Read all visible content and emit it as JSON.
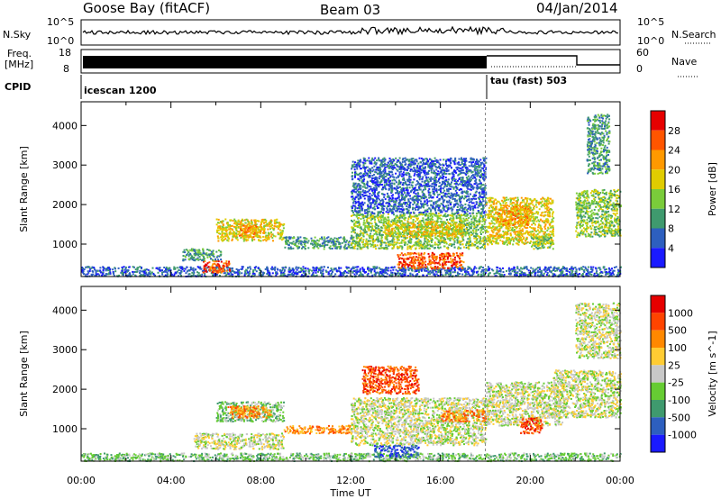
{
  "header": {
    "station": "Goose Bay (fitACF)",
    "beam": "Beam 03",
    "date": "04/Jan/2014"
  },
  "sky_panel": {
    "left_label": "N.Sky",
    "right_label": "N.Search",
    "left_ticks": [
      "10^5",
      "10^0"
    ],
    "right_ticks": [
      "10^5",
      "10^0"
    ]
  },
  "freq_panel": {
    "left_label_line1": "Freq.",
    "left_label_line2": "[MHz]",
    "right_label": "Nave",
    "left_ticks": [
      "18",
      "8"
    ],
    "right_ticks": [
      "60",
      "0"
    ]
  },
  "cpid_panel": {
    "label": "CPID",
    "modes": [
      {
        "name": "icescan 1200",
        "start_hour": 0
      },
      {
        "name": "tau (fast) 503",
        "start_hour": 18
      }
    ]
  },
  "x_axis": {
    "label": "Time UT",
    "tick_labels": [
      "00:00",
      "04:00",
      "08:00",
      "12:00",
      "16:00",
      "20:00",
      "00:00"
    ],
    "range_hours": [
      0,
      24
    ]
  },
  "chart_data": [
    {
      "type": "heatmap",
      "name": "power",
      "ylabel": "Slant Range [km]",
      "y_ticks": [
        "1000",
        "2000",
        "3000",
        "4000"
      ],
      "ylim": [
        180,
        4600
      ],
      "xlim": [
        0,
        24
      ],
      "colorbar": {
        "label": "Power [dB]",
        "tick_labels": [
          "4",
          "8",
          "12",
          "16",
          "20",
          "24",
          "28"
        ],
        "colors": [
          "#1a1aff",
          "#2d5fbf",
          "#3f9a6e",
          "#7acc3a",
          "#e0cc00",
          "#ff9900",
          "#ff5500",
          "#e60000"
        ]
      },
      "regions": [
        {
          "t0": 0.0,
          "t1": 24.0,
          "r0": 200,
          "r1": 450,
          "level": 1
        },
        {
          "t0": 5.4,
          "t1": 6.6,
          "r0": 300,
          "r1": 600,
          "level": 6
        },
        {
          "t0": 4.5,
          "t1": 6.2,
          "r0": 600,
          "r1": 900,
          "level": 2
        },
        {
          "t0": 6.0,
          "t1": 9.0,
          "r0": 1100,
          "r1": 1650,
          "level": 4
        },
        {
          "t0": 7.0,
          "t1": 8.0,
          "r0": 1200,
          "r1": 1500,
          "level": 5
        },
        {
          "t0": 9.0,
          "t1": 12.0,
          "r0": 900,
          "r1": 1200,
          "level": 2
        },
        {
          "t0": 12.0,
          "t1": 18.0,
          "r0": 900,
          "r1": 1800,
          "level": 3
        },
        {
          "t0": 13.5,
          "t1": 17.0,
          "r0": 1200,
          "r1": 1600,
          "level": 4
        },
        {
          "t0": 14.0,
          "t1": 17.0,
          "r0": 400,
          "r1": 800,
          "level": 6
        },
        {
          "t0": 12.0,
          "t1": 18.0,
          "r0": 1800,
          "r1": 3200,
          "level": 1
        },
        {
          "t0": 18.0,
          "t1": 21.0,
          "r0": 1000,
          "r1": 2200,
          "level": 4
        },
        {
          "t0": 18.5,
          "t1": 20.0,
          "r0": 1500,
          "r1": 2000,
          "level": 5
        },
        {
          "t0": 20.0,
          "t1": 21.0,
          "r0": 900,
          "r1": 1200,
          "level": 3
        },
        {
          "t0": 22.0,
          "t1": 24.0,
          "r0": 1200,
          "r1": 2400,
          "level": 3
        },
        {
          "t0": 22.5,
          "t1": 23.5,
          "r0": 2800,
          "r1": 4300,
          "level": 2
        }
      ]
    },
    {
      "type": "heatmap",
      "name": "velocity",
      "ylabel": "Slant Range [km]",
      "y_ticks": [
        "1000",
        "2000",
        "3000",
        "4000"
      ],
      "ylim": [
        180,
        4600
      ],
      "xlim": [
        0,
        24
      ],
      "colorbar": {
        "label": "Velocity [m s^-1]",
        "tick_labels": [
          "1000",
          "500",
          "100",
          "25",
          "-25",
          "-100",
          "-500",
          "-1000"
        ],
        "colors": [
          "#1a1aff",
          "#2d5fbf",
          "#3f9a6e",
          "#66cc33",
          "#c8c8c8",
          "#ffcc33",
          "#ff8800",
          "#ff4400",
          "#e60000"
        ]
      },
      "regions": [
        {
          "t0": 0.0,
          "t1": 24.0,
          "r0": 200,
          "r1": 400,
          "level": 3
        },
        {
          "t0": 5.0,
          "t1": 9.0,
          "r0": 500,
          "r1": 900,
          "level": 4
        },
        {
          "t0": 6.0,
          "t1": 9.0,
          "r0": 1200,
          "r1": 1700,
          "level": 3
        },
        {
          "t0": 6.5,
          "t1": 8.5,
          "r0": 1300,
          "r1": 1600,
          "level": 6
        },
        {
          "t0": 9.0,
          "t1": 12.0,
          "r0": 900,
          "r1": 1100,
          "level": 6
        },
        {
          "t0": 12.0,
          "t1": 18.0,
          "r0": 600,
          "r1": 1800,
          "level": 4
        },
        {
          "t0": 12.5,
          "t1": 15.0,
          "r0": 1900,
          "r1": 2600,
          "level": 7
        },
        {
          "t0": 16.0,
          "t1": 18.0,
          "r0": 1200,
          "r1": 1500,
          "level": 6
        },
        {
          "t0": 18.0,
          "t1": 21.5,
          "r0": 1100,
          "r1": 2200,
          "level": 4
        },
        {
          "t0": 19.5,
          "t1": 20.5,
          "r0": 900,
          "r1": 1300,
          "level": 7
        },
        {
          "t0": 21.0,
          "t1": 24.0,
          "r0": 1300,
          "r1": 2500,
          "level": 4
        },
        {
          "t0": 22.0,
          "t1": 24.0,
          "r0": 2800,
          "r1": 4200,
          "level": 4
        },
        {
          "t0": 13.0,
          "t1": 15.0,
          "r0": 300,
          "r1": 600,
          "level": 1
        }
      ]
    }
  ]
}
